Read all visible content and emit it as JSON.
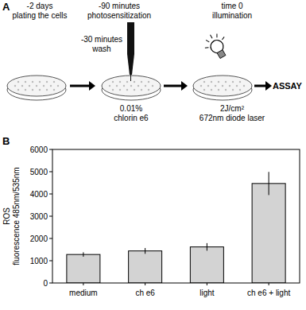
{
  "panel_labels": [
    "A",
    "B"
  ],
  "diagram": {
    "steps": [
      {
        "time": "-2 days",
        "label": "plating the cells"
      },
      {
        "time": "-90 minutes",
        "label": "photosensitization",
        "detail": [
          "0.01%",
          "chlorin e6"
        ]
      },
      {
        "time": "-30 minutes",
        "label": "wash"
      },
      {
        "time": "time 0",
        "label": "illumination",
        "detail": [
          "2J/cm²",
          "672nm diode laser"
        ]
      }
    ],
    "result": "ASSAY"
  },
  "chart_data": {
    "type": "bar",
    "ylabel": [
      "ROS",
      "fluorescence 485nm/535nm"
    ],
    "categories": [
      "medium",
      "ch e6",
      "light",
      "ch e6 + light"
    ],
    "values": [
      1280,
      1440,
      1620,
      4470
    ],
    "errors": [
      100,
      130,
      170,
      520
    ],
    "color": "#d3d3d3",
    "ylim": [
      0,
      6000
    ],
    "yticks": [
      0,
      1000,
      2000,
      3000,
      4000,
      5000,
      6000
    ],
    "grid": false
  }
}
